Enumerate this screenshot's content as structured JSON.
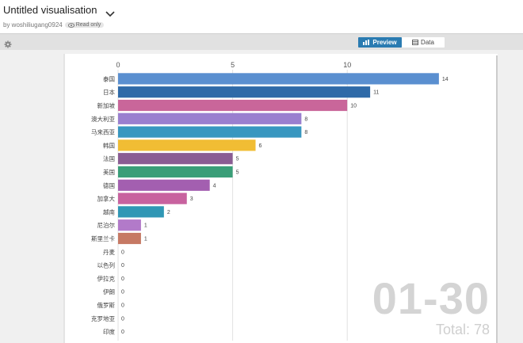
{
  "header": {
    "title": "Untitled visualisation",
    "author": "by woshiliugang0924",
    "badge": "Read only"
  },
  "tabs": {
    "preview": "Preview",
    "data": "Data"
  },
  "chart_data": {
    "type": "bar",
    "orientation": "horizontal",
    "categories": [
      "泰国",
      "日本",
      "新加坡",
      "澳大利亚",
      "马来西亚",
      "韩国",
      "法国",
      "美国",
      "德国",
      "加拿大",
      "越南",
      "尼泊尔",
      "斯里兰卡",
      "丹麦",
      "以色列",
      "伊拉克",
      "伊朗",
      "俄罗斯",
      "克罗地亚",
      "印度"
    ],
    "values": [
      14,
      11,
      10,
      8,
      8,
      6,
      5,
      5,
      4,
      3,
      2,
      1,
      1,
      0,
      0,
      0,
      0,
      0,
      0,
      0
    ],
    "colors": [
      "#5a8fd0",
      "#2f6aa8",
      "#c9669a",
      "#9a7fcf",
      "#3897c0",
      "#f1bd34",
      "#8a5c93",
      "#3a9e78",
      "#a35fb0",
      "#c8629f",
      "#3097b5",
      "#b27ac9",
      "#c67964",
      "#999999",
      "#999999",
      "#999999",
      "#999999",
      "#999999",
      "#999999",
      "#999999"
    ],
    "xticks": [
      0,
      5,
      10
    ],
    "xlim": [
      0,
      15
    ],
    "date_label": "01-30",
    "total_label": "Total: 78"
  }
}
